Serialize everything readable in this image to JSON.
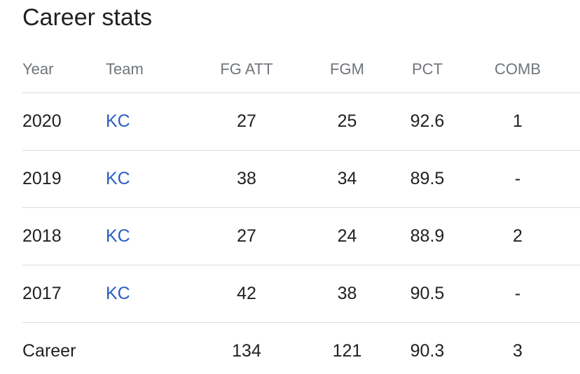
{
  "title": "Career stats",
  "columns": {
    "year": "Year",
    "team": "Team",
    "fg_att": "FG ATT",
    "fgm": "FGM",
    "pct": "PCT",
    "comb": "COMB"
  },
  "rows": [
    {
      "year": "2020",
      "team": "KC",
      "fg_att": "27",
      "fgm": "25",
      "pct": "92.6",
      "comb": "1"
    },
    {
      "year": "2019",
      "team": "KC",
      "fg_att": "38",
      "fgm": "34",
      "pct": "89.5",
      "comb": "-"
    },
    {
      "year": "2018",
      "team": "KC",
      "fg_att": "27",
      "fgm": "24",
      "pct": "88.9",
      "comb": "2"
    },
    {
      "year": "2017",
      "team": "KC",
      "fg_att": "42",
      "fgm": "38",
      "pct": "90.5",
      "comb": "-"
    }
  ],
  "total": {
    "label": "Career",
    "fg_att": "134",
    "fgm": "121",
    "pct": "90.3",
    "comb": "3"
  },
  "colors": {
    "link": "#2a5cc4",
    "header_text": "#70757a",
    "divider": "#dadce0"
  }
}
